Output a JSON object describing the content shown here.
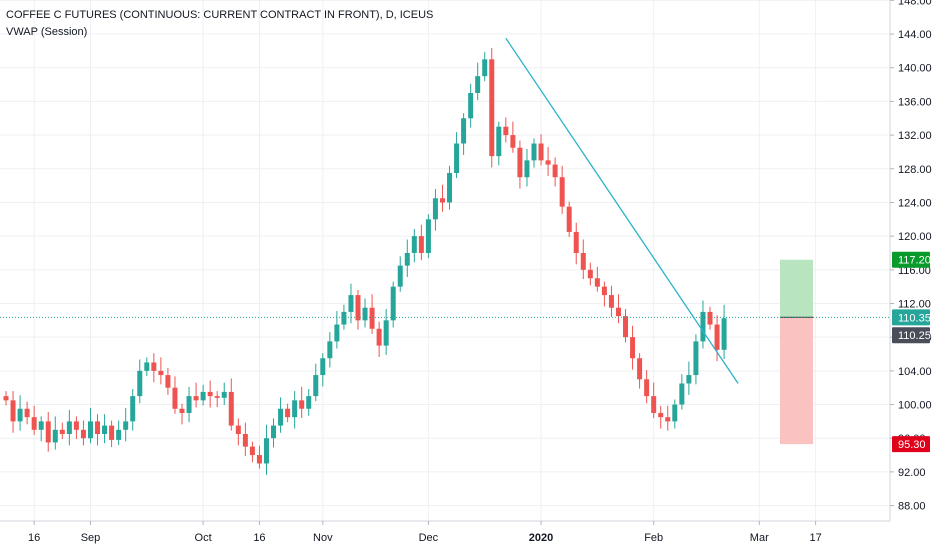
{
  "header": {
    "title": "COFFEE C FUTURES (CONTINUOUS: CURRENT CONTRACT IN FRONT), D, ICEUS",
    "indicator": "VWAP (Session)"
  },
  "colors": {
    "up": "#26a69a",
    "down": "#ef5350",
    "trendline": "#2bb3c9",
    "crosshair": "#26a69a",
    "target_zone": "#b9e4c0",
    "stop_zone": "#fbc2c2",
    "target_label": "#089a2a",
    "stop_label": "#e0001a",
    "price_label": "#4a4e59",
    "crosshair_label": "#26a69a"
  },
  "chart_data": {
    "type": "candlestick",
    "y_axis": {
      "range": [
        87,
        149
      ],
      "ticks": [
        "148.00",
        "144.00",
        "140.00",
        "136.00",
        "132.00",
        "128.00",
        "124.00",
        "120.00",
        "116.00",
        "112.00",
        "108.00",
        "104.00",
        "100.00",
        "96.00",
        "92.00",
        "88.00"
      ],
      "tick_values": [
        148,
        144,
        140,
        136,
        132,
        128,
        124,
        120,
        116,
        112,
        108,
        104,
        100,
        96,
        92,
        88
      ]
    },
    "x_axis": {
      "labels": [
        "16",
        "Sep",
        "Oct",
        "16",
        "Nov",
        "Dec",
        "2020",
        "Feb",
        "Mar",
        "17"
      ],
      "label_index": [
        4,
        12,
        28,
        36,
        45,
        60,
        76,
        92,
        107,
        115
      ],
      "bold_label": "2020"
    },
    "grid": true,
    "candles": [
      [
        101.0,
        100.5
      ],
      [
        100.5,
        98.0
      ],
      [
        98.0,
        99.5
      ],
      [
        99.5,
        98.5
      ],
      [
        98.5,
        97.0
      ],
      [
        97.0,
        98.0
      ],
      [
        98.0,
        95.5
      ],
      [
        95.5,
        97.0
      ],
      [
        97.0,
        96.5
      ],
      [
        96.5,
        98.0
      ],
      [
        98.0,
        97.0
      ],
      [
        97.0,
        96.0
      ],
      [
        96.0,
        98.0
      ],
      [
        98.0,
        96.5
      ],
      [
        96.5,
        97.5
      ],
      [
        97.5,
        95.8
      ],
      [
        95.8,
        97.0
      ],
      [
        97.0,
        98.0
      ],
      [
        98.0,
        101.0
      ],
      [
        101.0,
        104.0
      ],
      [
        104.0,
        105.0
      ],
      [
        105.0,
        104.0
      ],
      [
        104.0,
        103.5
      ],
      [
        103.5,
        102.0
      ],
      [
        102.0,
        99.5
      ],
      [
        99.5,
        99.0
      ],
      [
        99.0,
        101.0
      ],
      [
        101.0,
        100.5
      ],
      [
        100.5,
        101.5
      ],
      [
        101.5,
        101.0
      ],
      [
        101.0,
        100.8
      ],
      [
        100.8,
        101.5
      ],
      [
        101.5,
        97.5
      ],
      [
        97.5,
        96.5
      ],
      [
        96.5,
        95.0
      ],
      [
        95.0,
        94.0
      ],
      [
        94.0,
        93.0
      ],
      [
        93.0,
        96.0
      ],
      [
        96.0,
        97.5
      ],
      [
        97.5,
        99.5
      ],
      [
        99.5,
        98.5
      ],
      [
        98.5,
        100.5
      ],
      [
        100.5,
        99.5
      ],
      [
        99.5,
        101.0
      ],
      [
        101.0,
        103.5
      ],
      [
        103.5,
        105.5
      ],
      [
        105.5,
        107.5
      ],
      [
        107.5,
        109.5
      ],
      [
        109.5,
        111.0
      ],
      [
        111.0,
        113.0
      ],
      [
        113.0,
        110.0
      ],
      [
        110.0,
        111.5
      ],
      [
        111.5,
        109.0
      ],
      [
        109.0,
        107.0
      ],
      [
        107.0,
        110.0
      ],
      [
        110.0,
        114.0
      ],
      [
        114.0,
        116.5
      ],
      [
        116.5,
        118.0
      ],
      [
        118.0,
        120.0
      ],
      [
        120.0,
        118.0
      ],
      [
        118.0,
        122.0
      ],
      [
        122.0,
        124.5
      ],
      [
        124.5,
        124.0
      ],
      [
        124.0,
        127.5
      ],
      [
        127.5,
        131.0
      ],
      [
        131.0,
        134.0
      ],
      [
        134.0,
        137.0
      ],
      [
        137.0,
        139.0
      ],
      [
        139.0,
        141.0
      ],
      [
        141.0,
        129.5
      ],
      [
        129.5,
        133.0
      ],
      [
        133.0,
        132.0
      ],
      [
        132.0,
        130.5
      ],
      [
        130.5,
        127.0
      ],
      [
        127.0,
        129.0
      ],
      [
        129.0,
        131.0
      ],
      [
        131.0,
        129.0
      ],
      [
        129.0,
        128.5
      ],
      [
        128.5,
        127.0
      ],
      [
        127.0,
        123.5
      ],
      [
        123.5,
        120.5
      ],
      [
        120.5,
        118.0
      ],
      [
        118.0,
        116.0
      ],
      [
        116.0,
        115.0
      ],
      [
        115.0,
        114.0
      ],
      [
        114.0,
        113.0
      ],
      [
        113.0,
        111.5
      ],
      [
        111.5,
        110.5
      ],
      [
        110.5,
        108.0
      ],
      [
        108.0,
        105.5
      ],
      [
        105.5,
        103.0
      ],
      [
        103.0,
        101.0
      ],
      [
        101.0,
        99.0
      ],
      [
        99.0,
        98.5
      ],
      [
        98.5,
        98.0
      ],
      [
        98.0,
        100.0
      ],
      [
        100.0,
        102.5
      ],
      [
        102.5,
        103.5
      ],
      [
        103.5,
        107.5
      ],
      [
        107.5,
        111.0
      ],
      [
        111.0,
        109.5
      ],
      [
        109.5,
        106.5
      ],
      [
        106.5,
        110.25
      ]
    ],
    "trendline": [
      [
        71,
        143.5
      ],
      [
        104,
        102.5
      ]
    ],
    "position": {
      "entry": 110.35,
      "target": 117.2,
      "stop": 95.3,
      "current": 110.25
    }
  },
  "labels": {
    "target": "117.20",
    "entry": "110.35",
    "current": "110.25",
    "stop": "95.30"
  }
}
